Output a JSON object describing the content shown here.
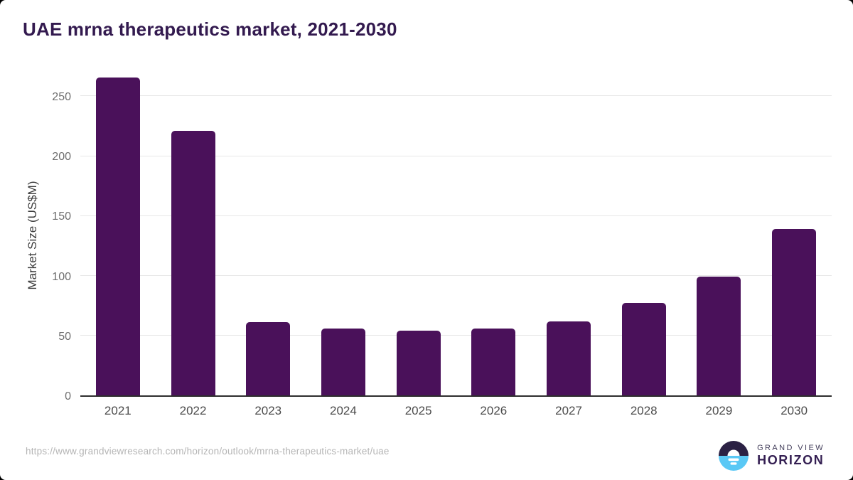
{
  "chart_data": {
    "type": "bar",
    "title": "UAE mrna therapeutics market, 2021-2030",
    "categories": [
      "2021",
      "2022",
      "2023",
      "2024",
      "2025",
      "2026",
      "2027",
      "2028",
      "2029",
      "2030"
    ],
    "values": [
      265,
      221,
      61,
      56,
      54,
      56,
      62,
      77,
      99,
      139
    ],
    "xlabel": "",
    "ylabel": "Market Size (US$M)",
    "ylim": [
      0,
      270
    ],
    "yticks": [
      0,
      50,
      100,
      150,
      200,
      250
    ],
    "grid": true,
    "legend": "none",
    "bar_color": "#4a115a"
  },
  "colors": {
    "title": "#331a4f",
    "bar": "#4a115a",
    "gridline": "#e7e7e7",
    "axis_line": "#2e2e2e",
    "y_tick_label": "#6e6e6e",
    "x_tick_label": "#4c4c4c",
    "logo_navy": "#2b2144",
    "logo_blue": "#5ac8f5"
  },
  "footer": {
    "source_url": "https://www.grandviewresearch.com/horizon/outlook/mrna-therapeutics-market/uae",
    "logo": {
      "line1": "GRAND VIEW",
      "line2": "HORIZON"
    }
  }
}
